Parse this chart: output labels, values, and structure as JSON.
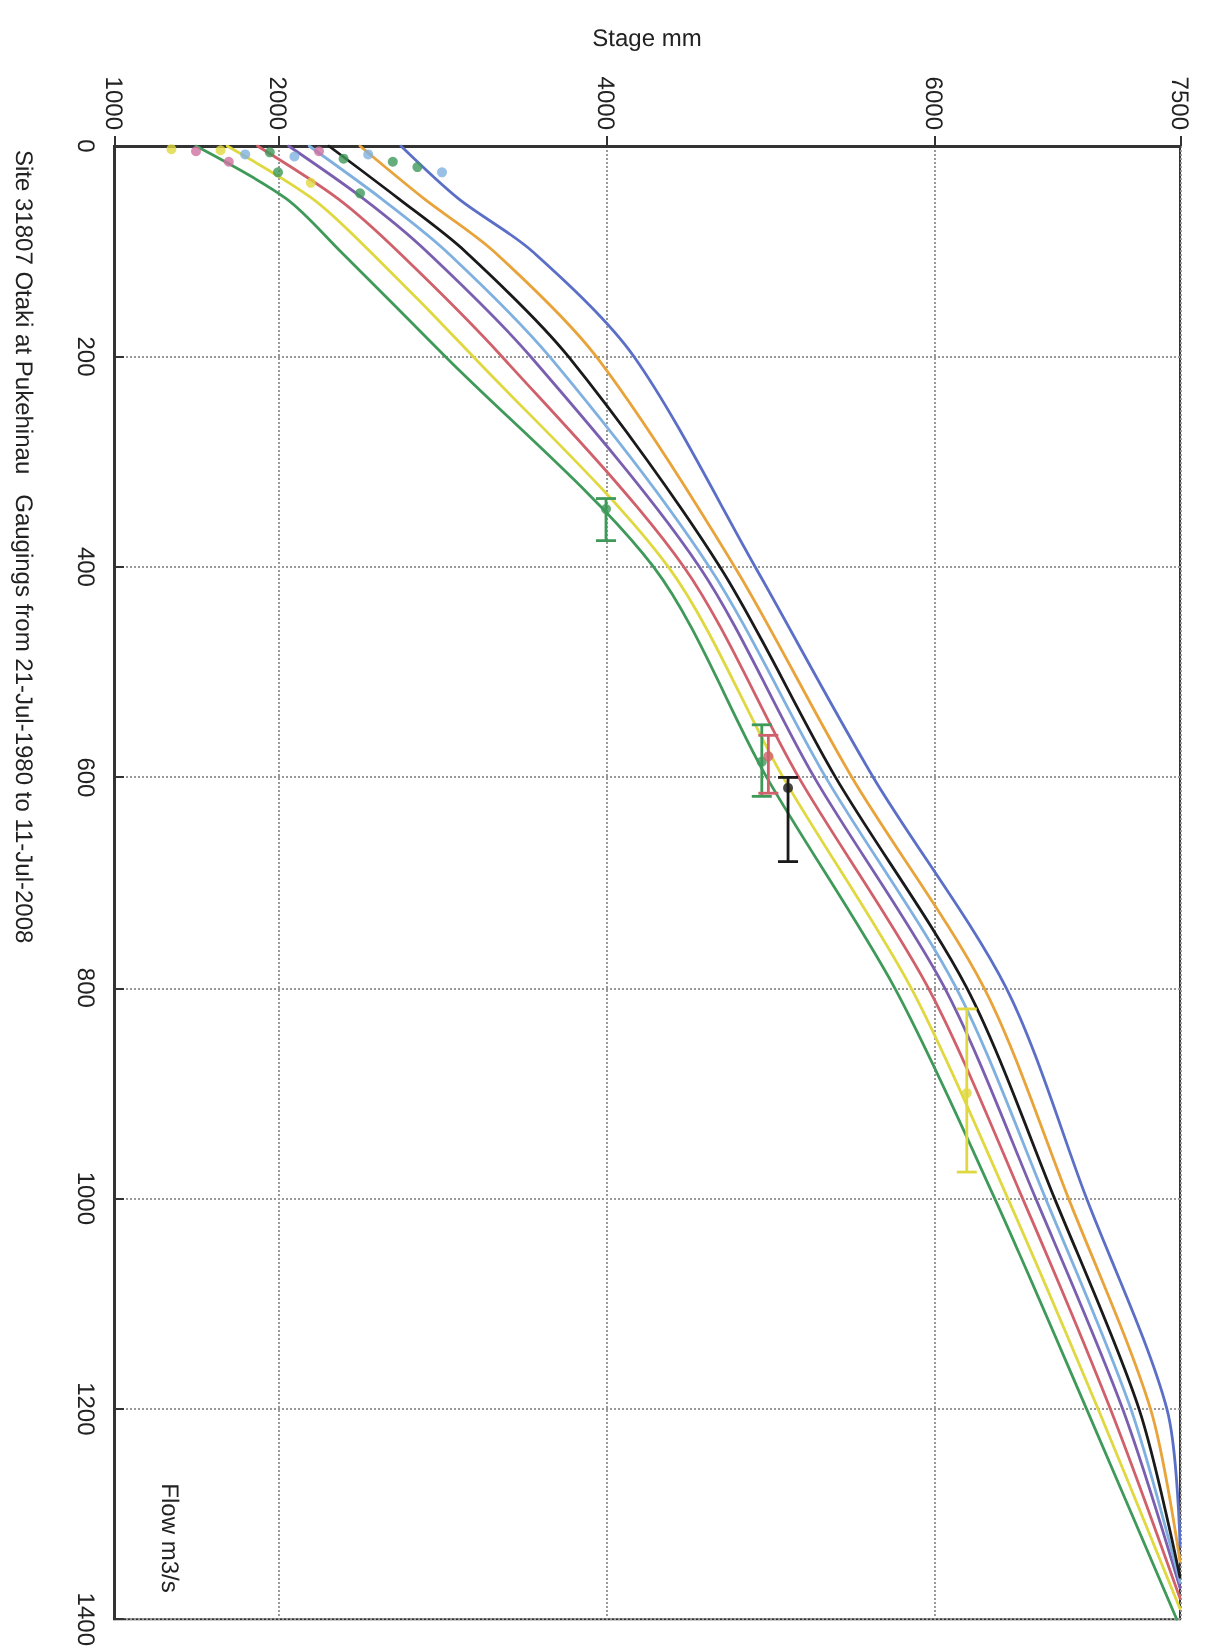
{
  "chart_data": {
    "type": "line",
    "title": "Site 31807 Otaki at Pukehinau",
    "subtitle": "Gaugings from 21-Jul-1980 to 11-Jul-2008",
    "xlabel": "Stage mm",
    "ylabel": "Flow m3/s",
    "xlim": [
      1000,
      7500
    ],
    "xticks": [
      1000,
      2000,
      4000,
      6000,
      7500
    ],
    "ylim": [
      1400,
      0
    ],
    "yticks": [
      0,
      200,
      400,
      600,
      800,
      1000,
      1200,
      1400
    ],
    "grid": true,
    "marker": "none",
    "line_style": "solid",
    "series": [
      {
        "color": "#3f9a5a",
        "x": [
          1500,
          2050,
          2380,
          3020,
          4290,
          4980,
          5760,
          6370,
          6930,
          7480
        ],
        "values": [
          0,
          50,
          100,
          200,
          400,
          600,
          800,
          1000,
          1200,
          1400
        ]
      },
      {
        "color": "#e0d840",
        "x": [
          1690,
          2210,
          2560,
          3190,
          4380,
          5080,
          5860,
          6450,
          7000,
          7500
        ],
        "values": [
          0,
          50,
          100,
          200,
          400,
          600,
          800,
          1000,
          1200,
          1390
        ]
      },
      {
        "color": "#d0606a",
        "x": [
          1875,
          2365,
          2730,
          3365,
          4475,
          5175,
          5965,
          6540,
          7075,
          7500
        ],
        "values": [
          0,
          50,
          100,
          200,
          400,
          600,
          800,
          1000,
          1200,
          1380
        ]
      },
      {
        "color": "#7a5fb0",
        "x": [
          2065,
          2520,
          2905,
          3540,
          4570,
          5270,
          6065,
          6620,
          7150,
          7500
        ],
        "values": [
          0,
          50,
          100,
          200,
          400,
          600,
          800,
          1000,
          1200,
          1370
        ]
      },
      {
        "color": "#7fb0e0",
        "x": [
          2190,
          2630,
          3025,
          3655,
          4630,
          5340,
          6135,
          6680,
          7200,
          7500
        ],
        "values": [
          0,
          50,
          100,
          200,
          400,
          600,
          800,
          1000,
          1200,
          1365
        ]
      },
      {
        "color": "#1a1a1a",
        "x": [
          2310,
          2735,
          3140,
          3770,
          4695,
          5400,
          6200,
          6735,
          7250,
          7500
        ],
        "values": [
          0,
          50,
          100,
          200,
          400,
          600,
          800,
          1000,
          1200,
          1360
        ]
      },
      {
        "color": "#e8a33a",
        "x": [
          2500,
          2890,
          3315,
          3940,
          4785,
          5500,
          6305,
          6820,
          7320,
          7500
        ],
        "values": [
          0,
          50,
          100,
          200,
          400,
          600,
          800,
          1000,
          1200,
          1345
        ]
      },
      {
        "color": "#5b6fc7",
        "x": [
          2750,
          3100,
          3550,
          4170,
          4910,
          5630,
          6440,
          6930,
          7420,
          7500
        ],
        "values": [
          0,
          50,
          100,
          200,
          400,
          600,
          800,
          1000,
          1200,
          1330
        ]
      },
      {
        "type": "scatter",
        "marker": "circle",
        "x": [
          1350,
          1500,
          1650,
          1800,
          1950,
          2100,
          2250,
          2400,
          2550,
          2700,
          2850,
          3000,
          2000,
          2200,
          2500,
          1700,
          4000,
          4950,
          4990,
          5110,
          6200
        ],
        "values": [
          3,
          5,
          4,
          8,
          6,
          10,
          5,
          12,
          8,
          15,
          20,
          25,
          25,
          35,
          45,
          15,
          345,
          585,
          580,
          610,
          900
        ],
        "colors": [
          "#e0d840",
          "#d070a0",
          "#e0d840",
          "#7fb0e0",
          "#3f9a5a",
          "#7fb0e0",
          "#d070a0",
          "#3f9a5a",
          "#7fb0e0",
          "#3f9a5a",
          "#3f9a5a",
          "#7fb0e0",
          "#3f9a5a",
          "#e0d840",
          "#3f9a5a",
          "#d070a0",
          "#3f9a5a",
          "#3f9a5a",
          "#d0606a",
          "#1a1a1a",
          "#e0d840"
        ],
        "errors": [
          null,
          null,
          null,
          null,
          null,
          null,
          null,
          null,
          null,
          null,
          null,
          null,
          null,
          null,
          null,
          null,
          [
            335,
            375
          ],
          [
            550,
            618
          ],
          [
            560,
            615
          ],
          [
            600,
            680
          ],
          [
            820,
            975
          ]
        ]
      }
    ]
  }
}
